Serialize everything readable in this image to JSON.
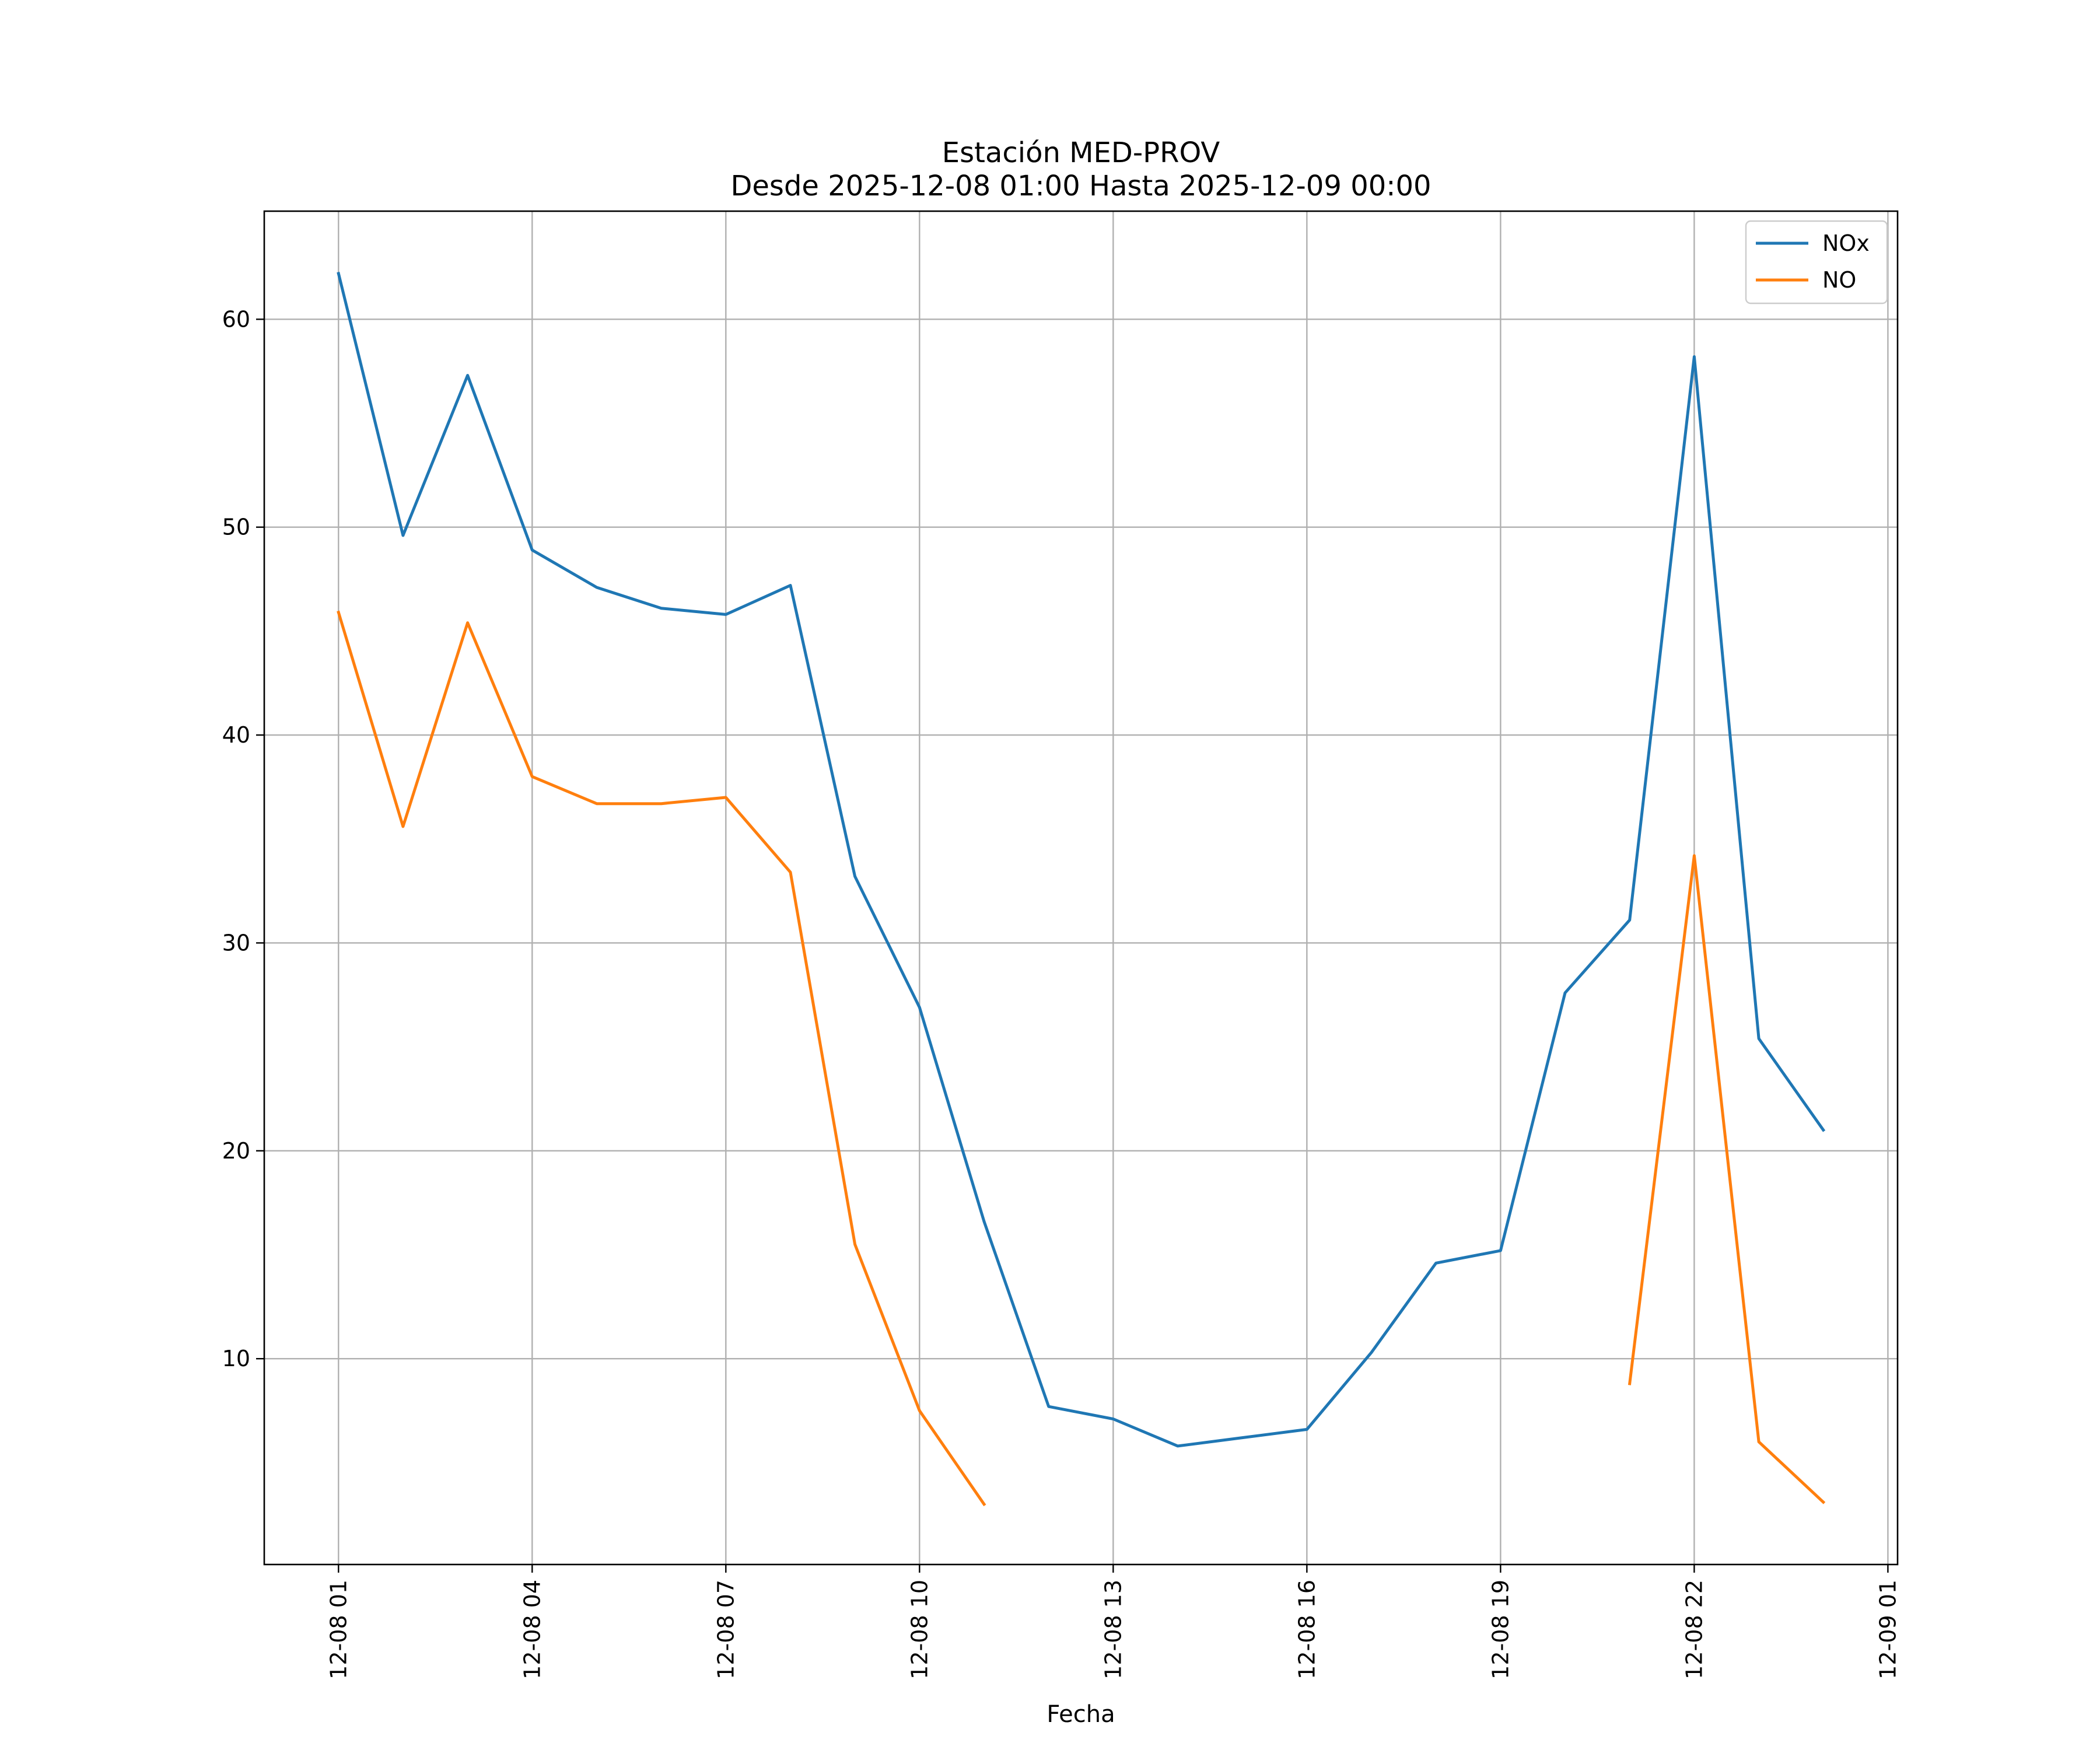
{
  "chart_data": {
    "type": "line",
    "title_line1": "Estación MED-PROV",
    "title_line2": "Desde 2025-12-08 01:00 Hasta 2025-12-09 00:00",
    "xlabel": "Fecha",
    "ylabel": "",
    "x": [
      "2025-12-08 01:00",
      "2025-12-08 02:00",
      "2025-12-08 03:00",
      "2025-12-08 04:00",
      "2025-12-08 05:00",
      "2025-12-08 06:00",
      "2025-12-08 07:00",
      "2025-12-08 08:00",
      "2025-12-08 09:00",
      "2025-12-08 10:00",
      "2025-12-08 11:00",
      "2025-12-08 12:00",
      "2025-12-08 13:00",
      "2025-12-08 14:00",
      "2025-12-08 15:00",
      "2025-12-08 16:00",
      "2025-12-08 17:00",
      "2025-12-08 18:00",
      "2025-12-08 19:00",
      "2025-12-08 20:00",
      "2025-12-08 21:00",
      "2025-12-08 22:00",
      "2025-12-08 23:00",
      "2025-12-09 00:00"
    ],
    "series": [
      {
        "name": "NOx",
        "color": "#1f77b4",
        "values": [
          62.2,
          49.6,
          57.3,
          48.9,
          47.1,
          46.1,
          45.8,
          47.2,
          33.2,
          26.9,
          16.6,
          7.7,
          7.1,
          5.8,
          6.2,
          6.6,
          10.3,
          14.6,
          15.2,
          27.6,
          31.1,
          58.2,
          25.4,
          21.0
        ]
      },
      {
        "name": "NO",
        "color": "#ff7f0e",
        "values": [
          45.9,
          35.6,
          45.4,
          38.0,
          36.7,
          36.7,
          37.0,
          33.4,
          15.5,
          7.5,
          3.0,
          null,
          null,
          null,
          null,
          null,
          null,
          null,
          null,
          null,
          8.8,
          34.2,
          6.0,
          3.1
        ]
      }
    ],
    "xticks": [
      "12-08 01",
      "12-08 04",
      "12-08 07",
      "12-08 10",
      "12-08 13",
      "12-08 16",
      "12-08 19",
      "12-08 22",
      "12-09 01"
    ],
    "xtick_hours": [
      0,
      3,
      6,
      9,
      12,
      15,
      18,
      21,
      24
    ],
    "yticks": [
      10,
      20,
      30,
      40,
      50,
      60
    ],
    "xlim_hours": [
      -1.15,
      24.15
    ],
    "ylim": [
      0.1,
      65.2
    ],
    "grid": true,
    "legend_position": "top-right"
  }
}
